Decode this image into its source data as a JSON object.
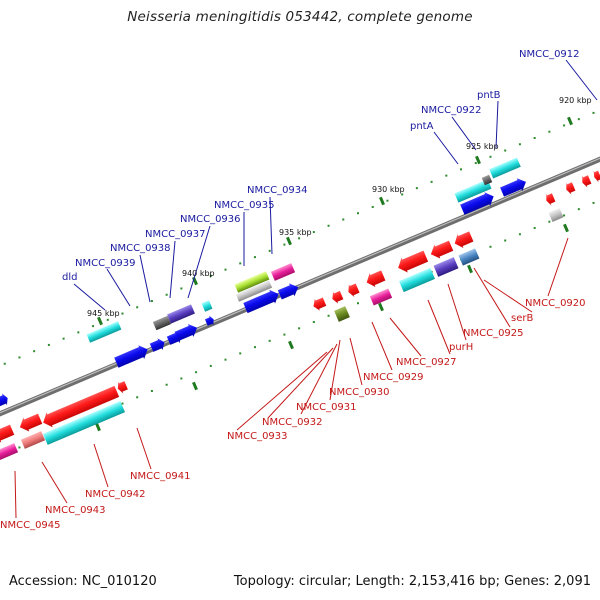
{
  "title": "Neisseria meningitidis 053442, complete genome",
  "footer": {
    "accession": "Accession: NC_010120",
    "summary": "Topology: circular; Length: 2,153,416 bp; Genes: 2,091"
  },
  "colors": {
    "backbone": "#808080",
    "tick": "#1f7a1f",
    "dot": "#2e8b2e",
    "label_top": "#1a1aa0",
    "label_bottom": "#c41818"
  },
  "scale_ticks": [
    "920 kbp",
    "925 kbp",
    "930 kbp",
    "935 kbp",
    "940 kbp",
    "945 kbp"
  ],
  "top_labels": [
    {
      "text": "NMCC_0912"
    },
    {
      "text": "pntB"
    },
    {
      "text": "NMCC_0922"
    },
    {
      "text": "pntA"
    },
    {
      "text": "NMCC_0934"
    },
    {
      "text": "NMCC_0935"
    },
    {
      "text": "NMCC_0936"
    },
    {
      "text": "NMCC_0937"
    },
    {
      "text": "NMCC_0938"
    },
    {
      "text": "NMCC_0939"
    },
    {
      "text": "dld"
    }
  ],
  "bottom_labels": [
    {
      "text": "NMCC_0920"
    },
    {
      "text": "serB"
    },
    {
      "text": "NMCC_0925"
    },
    {
      "text": "purH"
    },
    {
      "text": "NMCC_0927"
    },
    {
      "text": "NMCC_0929"
    },
    {
      "text": "NMCC_0930"
    },
    {
      "text": "NMCC_0931"
    },
    {
      "text": "NMCC_0932"
    },
    {
      "text": "NMCC_0933"
    },
    {
      "text": "NMCC_0941"
    },
    {
      "text": "NMCC_0942"
    },
    {
      "text": "NMCC_0943"
    },
    {
      "text": "NMCC_0945"
    }
  ]
}
